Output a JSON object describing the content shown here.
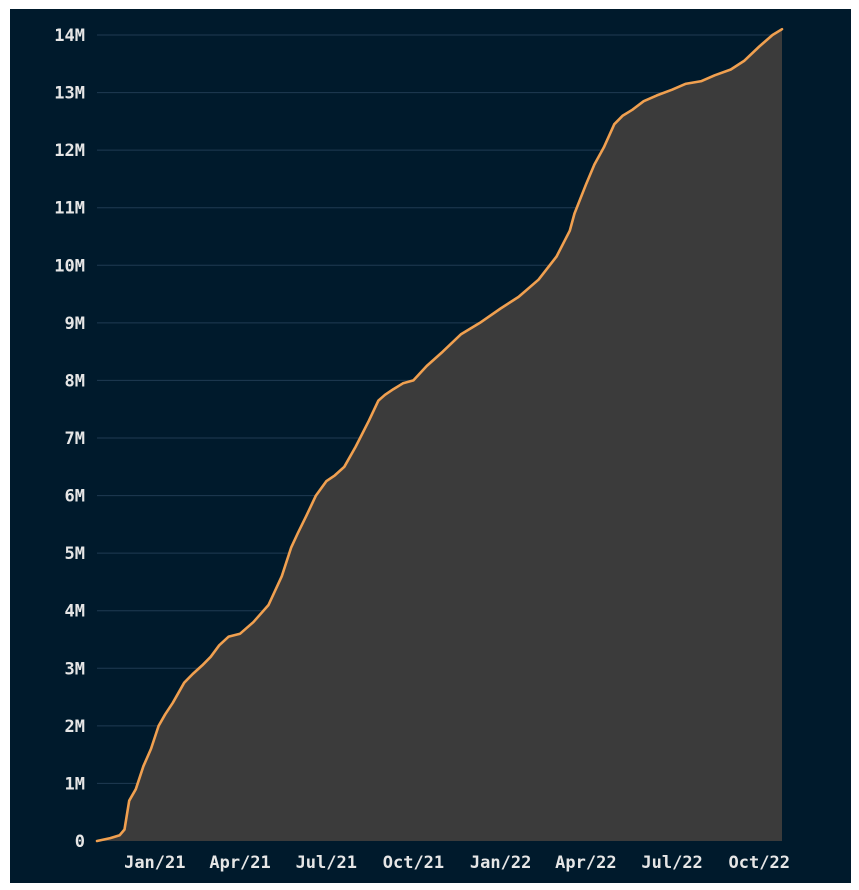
{
  "chart_data": {
    "type": "area",
    "title": "",
    "xlabel": "",
    "ylabel": "",
    "colors": {
      "background": "#001a2c",
      "line": "#f0a050",
      "fill": "#3b3b3b",
      "grid": "#1f3a52"
    },
    "grid": true,
    "legend": "none",
    "xlim": [
      "2020-11-01",
      "2022-10-25"
    ],
    "ylim": [
      0,
      14000000
    ],
    "x_ticks": [
      {
        "date": "2021-01-01",
        "label": "Jan/21"
      },
      {
        "date": "2021-04-01",
        "label": "Apr/21"
      },
      {
        "date": "2021-07-01",
        "label": "Jul/21"
      },
      {
        "date": "2021-10-01",
        "label": "Oct/21"
      },
      {
        "date": "2022-01-01",
        "label": "Jan/22"
      },
      {
        "date": "2022-04-01",
        "label": "Apr/22"
      },
      {
        "date": "2022-07-01",
        "label": "Jul/22"
      },
      {
        "date": "2022-10-01",
        "label": "Oct/22"
      }
    ],
    "y_ticks": [
      {
        "value": 0,
        "label": "0"
      },
      {
        "value": 1000000,
        "label": "1M"
      },
      {
        "value": 2000000,
        "label": "2M"
      },
      {
        "value": 3000000,
        "label": "3M"
      },
      {
        "value": 4000000,
        "label": "4M"
      },
      {
        "value": 5000000,
        "label": "5M"
      },
      {
        "value": 6000000,
        "label": "6M"
      },
      {
        "value": 7000000,
        "label": "7M"
      },
      {
        "value": 8000000,
        "label": "8M"
      },
      {
        "value": 9000000,
        "label": "9M"
      },
      {
        "value": 10000000,
        "label": "10M"
      },
      {
        "value": 11000000,
        "label": "11M"
      },
      {
        "value": 12000000,
        "label": "12M"
      },
      {
        "value": 13000000,
        "label": "13M"
      },
      {
        "value": 14000000,
        "label": "14M"
      }
    ],
    "series": [
      {
        "x": [
          "2020-11-01",
          "2020-11-15",
          "2020-11-25",
          "2020-11-30",
          "2020-12-05",
          "2020-12-12",
          "2020-12-20",
          "2020-12-28",
          "2021-01-05",
          "2021-01-12",
          "2021-01-20",
          "2021-02-01",
          "2021-02-10",
          "2021-02-20",
          "2021-03-01",
          "2021-03-10",
          "2021-03-20",
          "2021-04-01",
          "2021-04-15",
          "2021-05-01",
          "2021-05-15",
          "2021-05-25",
          "2021-06-01",
          "2021-06-10",
          "2021-06-20",
          "2021-07-01",
          "2021-07-10",
          "2021-07-20",
          "2021-08-01",
          "2021-08-15",
          "2021-08-25",
          "2021-09-01",
          "2021-09-10",
          "2021-09-20",
          "2021-10-01",
          "2021-10-15",
          "2021-11-01",
          "2021-11-20",
          "2021-12-10",
          "2022-01-01",
          "2022-01-20",
          "2022-02-10",
          "2022-03-01",
          "2022-03-15",
          "2022-03-20",
          "2022-04-01",
          "2022-04-10",
          "2022-04-20",
          "2022-05-01",
          "2022-05-10",
          "2022-05-20",
          "2022-06-01",
          "2022-06-15",
          "2022-07-01",
          "2022-07-15",
          "2022-08-01",
          "2022-08-15",
          "2022-09-01",
          "2022-09-15",
          "2022-10-01",
          "2022-10-15",
          "2022-10-25"
        ],
        "y": [
          0,
          50000,
          100000,
          200000,
          700000,
          900000,
          1300000,
          1600000,
          2000000,
          2200000,
          2400000,
          2750000,
          2900000,
          3050000,
          3200000,
          3400000,
          3550000,
          3600000,
          3800000,
          4100000,
          4600000,
          5100000,
          5350000,
          5650000,
          6000000,
          6250000,
          6350000,
          6500000,
          6850000,
          7300000,
          7650000,
          7750000,
          7850000,
          7950000,
          8000000,
          8250000,
          8500000,
          8800000,
          9000000,
          9250000,
          9450000,
          9750000,
          10150000,
          10600000,
          10900000,
          11400000,
          11750000,
          12050000,
          12450000,
          12600000,
          12700000,
          12850000,
          12950000,
          13050000,
          13150000,
          13200000,
          13300000,
          13400000,
          13550000,
          13800000,
          14000000,
          14100000
        ]
      }
    ]
  }
}
